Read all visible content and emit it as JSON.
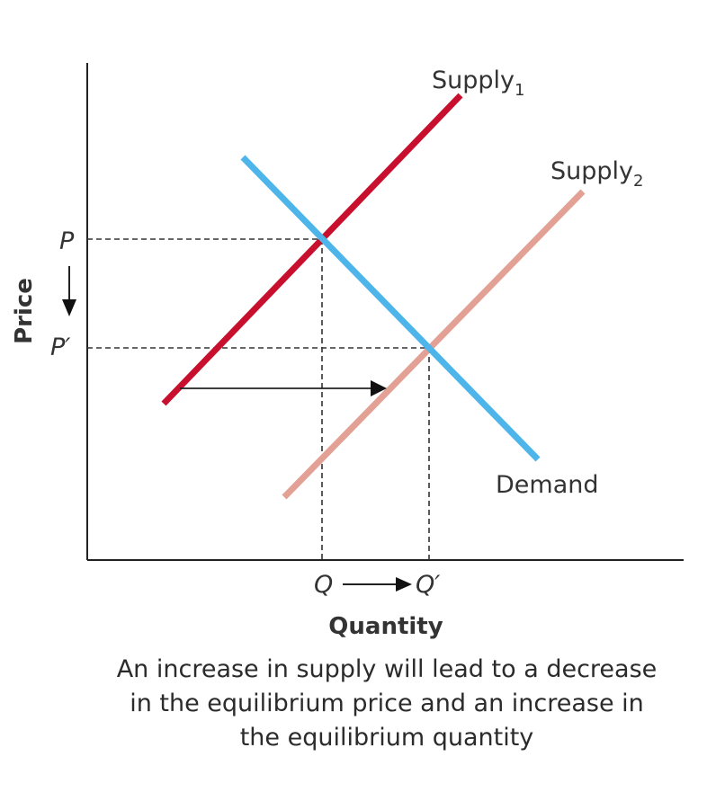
{
  "labels": {
    "supply1_base": "Supply",
    "supply1_sub": "1",
    "supply2_base": "Supply",
    "supply2_sub": "2",
    "demand": "Demand",
    "p": "P",
    "p_prime": "P′",
    "q": "Q",
    "q_prime": "Q′",
    "x_axis": "Quantity",
    "y_axis": "Price"
  },
  "caption": "An increase in supply will lead to a decrease in the equilibrium price and an increase in the equilibrium quantity",
  "colors": {
    "supply1": "#c8102e",
    "supply2": "#e3a195",
    "demand": "#4db5ea",
    "axes": "#222222",
    "guides": "#333333"
  }
}
